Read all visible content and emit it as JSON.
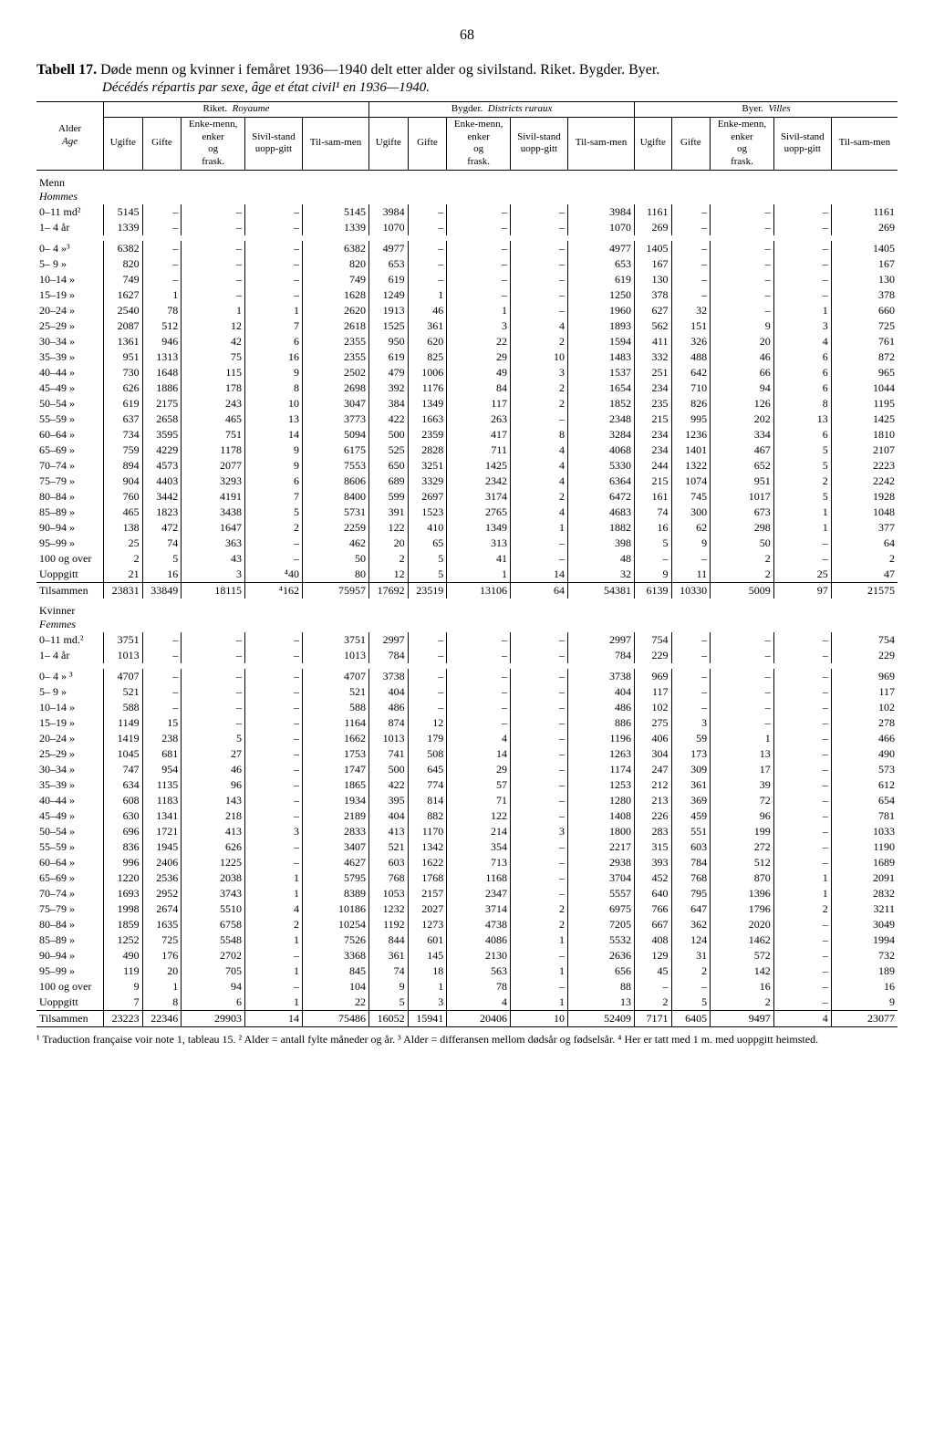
{
  "page_number": "68",
  "title_prefix": "Tabell 17.",
  "title_body": "Døde menn og kvinner i femåret 1936—1940 delt etter alder og sivilstand. Riket. Bygder. Byer.",
  "subtitle": "Décédés répartis par sexe, âge et état civil¹ en 1936—1940.",
  "group_headers": {
    "g1": "Riket.",
    "g1i": "Royaume",
    "g2": "Bygder.",
    "g2i": "Districts ruraux",
    "g3": "Byer.",
    "g3i": "Villes"
  },
  "left_header": {
    "l1": "Alder",
    "l2": "Age"
  },
  "col_sub": {
    "c1": "Ugifte",
    "c2": "Gifte",
    "c3": "Enke-menn, enker og frask.",
    "c4": "Sivil-stand uopp-gitt",
    "c5": "Til-sam-men"
  },
  "sections": [
    {
      "heading": "Menn",
      "heading_it": "Hommes",
      "rows": [
        {
          "label": "0–11 md²",
          "v": [
            "5145",
            "–",
            "–",
            "–",
            "5145",
            "3984",
            "–",
            "–",
            "–",
            "3984",
            "1161",
            "–",
            "–",
            "–",
            "1161"
          ]
        },
        {
          "label": "1– 4 år",
          "v": [
            "1339",
            "–",
            "–",
            "–",
            "1339",
            "1070",
            "–",
            "–",
            "–",
            "1070",
            "269",
            "–",
            "–",
            "–",
            "269"
          ]
        },
        {
          "label": "0– 4  »³",
          "gap": true,
          "v": [
            "6382",
            "–",
            "–",
            "–",
            "6382",
            "4977",
            "–",
            "–",
            "–",
            "4977",
            "1405",
            "–",
            "–",
            "–",
            "1405"
          ]
        },
        {
          "label": "5– 9  »",
          "v": [
            "820",
            "–",
            "–",
            "–",
            "820",
            "653",
            "–",
            "–",
            "–",
            "653",
            "167",
            "–",
            "–",
            "–",
            "167"
          ]
        },
        {
          "label": "10–14  »",
          "v": [
            "749",
            "–",
            "–",
            "–",
            "749",
            "619",
            "–",
            "–",
            "–",
            "619",
            "130",
            "–",
            "–",
            "–",
            "130"
          ]
        },
        {
          "label": "15–19  »",
          "v": [
            "1627",
            "1",
            "–",
            "–",
            "1628",
            "1249",
            "1",
            "–",
            "–",
            "1250",
            "378",
            "–",
            "–",
            "–",
            "378"
          ]
        },
        {
          "label": "20–24  »",
          "v": [
            "2540",
            "78",
            "1",
            "1",
            "2620",
            "1913",
            "46",
            "1",
            "–",
            "1960",
            "627",
            "32",
            "–",
            "1",
            "660"
          ]
        },
        {
          "label": "25–29  »",
          "v": [
            "2087",
            "512",
            "12",
            "7",
            "2618",
            "1525",
            "361",
            "3",
            "4",
            "1893",
            "562",
            "151",
            "9",
            "3",
            "725"
          ]
        },
        {
          "label": "30–34  »",
          "v": [
            "1361",
            "946",
            "42",
            "6",
            "2355",
            "950",
            "620",
            "22",
            "2",
            "1594",
            "411",
            "326",
            "20",
            "4",
            "761"
          ]
        },
        {
          "label": "35–39  »",
          "v": [
            "951",
            "1313",
            "75",
            "16",
            "2355",
            "619",
            "825",
            "29",
            "10",
            "1483",
            "332",
            "488",
            "46",
            "6",
            "872"
          ]
        },
        {
          "label": "40–44  »",
          "v": [
            "730",
            "1648",
            "115",
            "9",
            "2502",
            "479",
            "1006",
            "49",
            "3",
            "1537",
            "251",
            "642",
            "66",
            "6",
            "965"
          ]
        },
        {
          "label": "45–49  »",
          "v": [
            "626",
            "1886",
            "178",
            "8",
            "2698",
            "392",
            "1176",
            "84",
            "2",
            "1654",
            "234",
            "710",
            "94",
            "6",
            "1044"
          ]
        },
        {
          "label": "50–54  »",
          "v": [
            "619",
            "2175",
            "243",
            "10",
            "3047",
            "384",
            "1349",
            "117",
            "2",
            "1852",
            "235",
            "826",
            "126",
            "8",
            "1195"
          ]
        },
        {
          "label": "55–59  »",
          "v": [
            "637",
            "2658",
            "465",
            "13",
            "3773",
            "422",
            "1663",
            "263",
            "–",
            "2348",
            "215",
            "995",
            "202",
            "13",
            "1425"
          ]
        },
        {
          "label": "60–64  »",
          "v": [
            "734",
            "3595",
            "751",
            "14",
            "5094",
            "500",
            "2359",
            "417",
            "8",
            "3284",
            "234",
            "1236",
            "334",
            "6",
            "1810"
          ]
        },
        {
          "label": "65–69  »",
          "v": [
            "759",
            "4229",
            "1178",
            "9",
            "6175",
            "525",
            "2828",
            "711",
            "4",
            "4068",
            "234",
            "1401",
            "467",
            "5",
            "2107"
          ]
        },
        {
          "label": "70–74  »",
          "v": [
            "894",
            "4573",
            "2077",
            "9",
            "7553",
            "650",
            "3251",
            "1425",
            "4",
            "5330",
            "244",
            "1322",
            "652",
            "5",
            "2223"
          ]
        },
        {
          "label": "75–79  »",
          "v": [
            "904",
            "4403",
            "3293",
            "6",
            "8606",
            "689",
            "3329",
            "2342",
            "4",
            "6364",
            "215",
            "1074",
            "951",
            "2",
            "2242"
          ]
        },
        {
          "label": "80–84  »",
          "v": [
            "760",
            "3442",
            "4191",
            "7",
            "8400",
            "599",
            "2697",
            "3174",
            "2",
            "6472",
            "161",
            "745",
            "1017",
            "5",
            "1928"
          ]
        },
        {
          "label": "85–89  »",
          "v": [
            "465",
            "1823",
            "3438",
            "5",
            "5731",
            "391",
            "1523",
            "2765",
            "4",
            "4683",
            "74",
            "300",
            "673",
            "1",
            "1048"
          ]
        },
        {
          "label": "90–94  »",
          "v": [
            "138",
            "472",
            "1647",
            "2",
            "2259",
            "122",
            "410",
            "1349",
            "1",
            "1882",
            "16",
            "62",
            "298",
            "1",
            "377"
          ]
        },
        {
          "label": "95–99  »",
          "v": [
            "25",
            "74",
            "363",
            "–",
            "462",
            "20",
            "65",
            "313",
            "–",
            "398",
            "5",
            "9",
            "50",
            "–",
            "64"
          ]
        },
        {
          "label": "100 og over",
          "v": [
            "2",
            "5",
            "43",
            "–",
            "50",
            "2",
            "5",
            "41",
            "–",
            "48",
            "–",
            "–",
            "2",
            "–",
            "2"
          ]
        },
        {
          "label": "Uoppgitt",
          "v": [
            "21",
            "16",
            "3",
            "⁴40",
            "80",
            "12",
            "5",
            "1",
            "14",
            "32",
            "9",
            "11",
            "2",
            "25",
            "47"
          ]
        }
      ],
      "total": {
        "label": "Tilsammen",
        "v": [
          "23831",
          "33849",
          "18115",
          "⁴162",
          "75957",
          "17692",
          "23519",
          "13106",
          "64",
          "54381",
          "6139",
          "10330",
          "5009",
          "97",
          "21575"
        ]
      }
    },
    {
      "heading": "Kvinner",
      "heading_it": "Femmes",
      "rows": [
        {
          "label": "0–11 md.²",
          "v": [
            "3751",
            "–",
            "–",
            "–",
            "3751",
            "2997",
            "–",
            "–",
            "–",
            "2997",
            "754",
            "–",
            "–",
            "–",
            "754"
          ]
        },
        {
          "label": "1– 4 år",
          "v": [
            "1013",
            "–",
            "–",
            "–",
            "1013",
            "784",
            "–",
            "–",
            "–",
            "784",
            "229",
            "–",
            "–",
            "–",
            "229"
          ]
        },
        {
          "label": "0– 4  » ³",
          "gap": true,
          "v": [
            "4707",
            "–",
            "–",
            "–",
            "4707",
            "3738",
            "–",
            "–",
            "–",
            "3738",
            "969",
            "–",
            "–",
            "–",
            "969"
          ]
        },
        {
          "label": "5– 9  »",
          "v": [
            "521",
            "–",
            "–",
            "–",
            "521",
            "404",
            "–",
            "–",
            "–",
            "404",
            "117",
            "–",
            "–",
            "–",
            "117"
          ]
        },
        {
          "label": "10–14  »",
          "v": [
            "588",
            "–",
            "–",
            "–",
            "588",
            "486",
            "–",
            "–",
            "–",
            "486",
            "102",
            "–",
            "–",
            "–",
            "102"
          ]
        },
        {
          "label": "15–19  »",
          "v": [
            "1149",
            "15",
            "–",
            "–",
            "1164",
            "874",
            "12",
            "–",
            "–",
            "886",
            "275",
            "3",
            "–",
            "–",
            "278"
          ]
        },
        {
          "label": "20–24  »",
          "v": [
            "1419",
            "238",
            "5",
            "–",
            "1662",
            "1013",
            "179",
            "4",
            "–",
            "1196",
            "406",
            "59",
            "1",
            "–",
            "466"
          ]
        },
        {
          "label": "25–29  »",
          "v": [
            "1045",
            "681",
            "27",
            "–",
            "1753",
            "741",
            "508",
            "14",
            "–",
            "1263",
            "304",
            "173",
            "13",
            "–",
            "490"
          ]
        },
        {
          "label": "30–34  »",
          "v": [
            "747",
            "954",
            "46",
            "–",
            "1747",
            "500",
            "645",
            "29",
            "–",
            "1174",
            "247",
            "309",
            "17",
            "–",
            "573"
          ]
        },
        {
          "label": "35–39  »",
          "v": [
            "634",
            "1135",
            "96",
            "–",
            "1865",
            "422",
            "774",
            "57",
            "–",
            "1253",
            "212",
            "361",
            "39",
            "–",
            "612"
          ]
        },
        {
          "label": "40–44  »",
          "v": [
            "608",
            "1183",
            "143",
            "–",
            "1934",
            "395",
            "814",
            "71",
            "–",
            "1280",
            "213",
            "369",
            "72",
            "–",
            "654"
          ]
        },
        {
          "label": "45–49  »",
          "v": [
            "630",
            "1341",
            "218",
            "–",
            "2189",
            "404",
            "882",
            "122",
            "–",
            "1408",
            "226",
            "459",
            "96",
            "–",
            "781"
          ]
        },
        {
          "label": "50–54  »",
          "v": [
            "696",
            "1721",
            "413",
            "3",
            "2833",
            "413",
            "1170",
            "214",
            "3",
            "1800",
            "283",
            "551",
            "199",
            "–",
            "1033"
          ]
        },
        {
          "label": "55–59  »",
          "v": [
            "836",
            "1945",
            "626",
            "–",
            "3407",
            "521",
            "1342",
            "354",
            "–",
            "2217",
            "315",
            "603",
            "272",
            "–",
            "1190"
          ]
        },
        {
          "label": "60–64  »",
          "v": [
            "996",
            "2406",
            "1225",
            "–",
            "4627",
            "603",
            "1622",
            "713",
            "–",
            "2938",
            "393",
            "784",
            "512",
            "–",
            "1689"
          ]
        },
        {
          "label": "65–69  »",
          "v": [
            "1220",
            "2536",
            "2038",
            "1",
            "5795",
            "768",
            "1768",
            "1168",
            "–",
            "3704",
            "452",
            "768",
            "870",
            "1",
            "2091"
          ]
        },
        {
          "label": "70–74  »",
          "v": [
            "1693",
            "2952",
            "3743",
            "1",
            "8389",
            "1053",
            "2157",
            "2347",
            "–",
            "5557",
            "640",
            "795",
            "1396",
            "1",
            "2832"
          ]
        },
        {
          "label": "75–79  »",
          "v": [
            "1998",
            "2674",
            "5510",
            "4",
            "10186",
            "1232",
            "2027",
            "3714",
            "2",
            "6975",
            "766",
            "647",
            "1796",
            "2",
            "3211"
          ]
        },
        {
          "label": "80–84  »",
          "v": [
            "1859",
            "1635",
            "6758",
            "2",
            "10254",
            "1192",
            "1273",
            "4738",
            "2",
            "7205",
            "667",
            "362",
            "2020",
            "–",
            "3049"
          ]
        },
        {
          "label": "85–89  »",
          "v": [
            "1252",
            "725",
            "5548",
            "1",
            "7526",
            "844",
            "601",
            "4086",
            "1",
            "5532",
            "408",
            "124",
            "1462",
            "–",
            "1994"
          ]
        },
        {
          "label": "90–94  »",
          "v": [
            "490",
            "176",
            "2702",
            "–",
            "3368",
            "361",
            "145",
            "2130",
            "–",
            "2636",
            "129",
            "31",
            "572",
            "–",
            "732"
          ]
        },
        {
          "label": "95–99  »",
          "v": [
            "119",
            "20",
            "705",
            "1",
            "845",
            "74",
            "18",
            "563",
            "1",
            "656",
            "45",
            "2",
            "142",
            "–",
            "189"
          ]
        },
        {
          "label": "100 og over",
          "v": [
            "9",
            "1",
            "94",
            "–",
            "104",
            "9",
            "1",
            "78",
            "–",
            "88",
            "–",
            "–",
            "16",
            "–",
            "16"
          ]
        },
        {
          "label": "Uoppgitt",
          "v": [
            "7",
            "8",
            "6",
            "1",
            "22",
            "5",
            "3",
            "4",
            "1",
            "13",
            "2",
            "5",
            "2",
            "–",
            "9"
          ]
        }
      ],
      "total": {
        "label": "Tilsammen",
        "v": [
          "23223",
          "22346",
          "29903",
          "14",
          "75486",
          "16052",
          "15941",
          "20406",
          "10",
          "52409",
          "7171",
          "6405",
          "9497",
          "4",
          "23077"
        ]
      }
    }
  ],
  "footnote": "¹ Traduction française voir note 1, tableau 15.  ² Alder = antall fylte måneder og år.  ³ Alder = differansen mellom dødsår og fødselsår.  ⁴ Her er tatt med 1 m. med uoppgitt heimsted."
}
